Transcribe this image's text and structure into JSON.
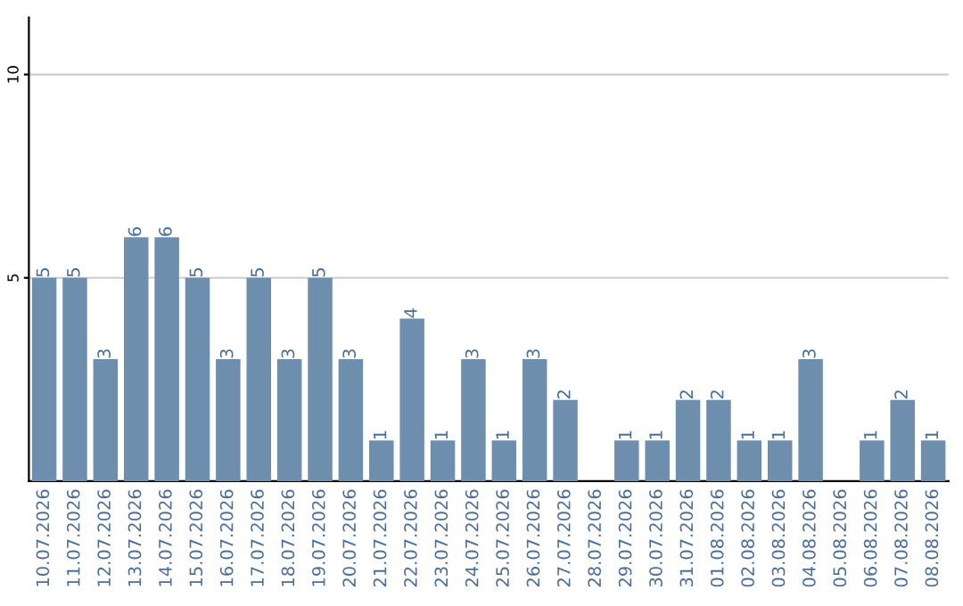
{
  "chart_data": {
    "type": "bar",
    "categories": [
      "10.07.2026",
      "11.07.2026",
      "12.07.2026",
      "13.07.2026",
      "14.07.2026",
      "15.07.2026",
      "16.07.2026",
      "17.07.2026",
      "18.07.2026",
      "19.07.2026",
      "20.07.2026",
      "21.07.2026",
      "22.07.2026",
      "23.07.2026",
      "24.07.2026",
      "25.07.2026",
      "26.07.2026",
      "27.07.2026",
      "28.07.2026",
      "29.07.2026",
      "30.07.2026",
      "31.07.2026",
      "01.08.2026",
      "02.08.2026",
      "03.08.2026",
      "04.08.2026",
      "05.08.2026",
      "06.08.2026",
      "07.08.2026",
      "08.08.2026"
    ],
    "values": [
      5,
      5,
      3,
      6,
      6,
      5,
      3,
      5,
      3,
      5,
      3,
      1,
      4,
      1,
      3,
      1,
      3,
      2,
      0,
      1,
      1,
      2,
      2,
      1,
      1,
      3,
      0,
      1,
      2,
      1
    ],
    "value_labels": [
      "5",
      "5",
      "3",
      "6",
      "6",
      "5",
      "3",
      "5",
      "3",
      "5",
      "3",
      "1",
      "4",
      "1",
      "3",
      "1",
      "3",
      "2",
      null,
      "1",
      "1",
      "2",
      "2",
      "1",
      "1",
      "3",
      null,
      "1",
      "2",
      "1"
    ],
    "color": "#6d8fad",
    "ylim": [
      0,
      11.4
    ],
    "yticks": [
      5,
      10
    ],
    "grid": "y"
  }
}
